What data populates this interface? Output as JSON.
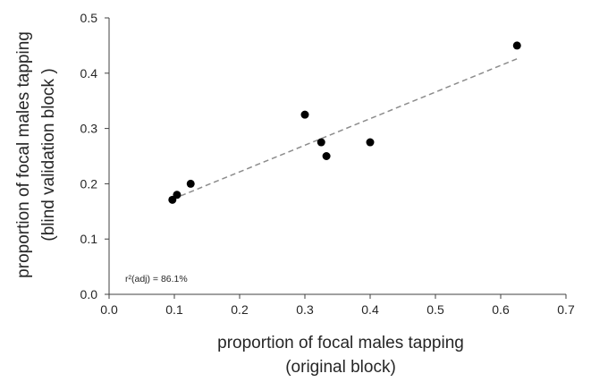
{
  "chart_data": {
    "type": "scatter",
    "xlabel": [
      "proportion of focal males tapping",
      "(original block)"
    ],
    "ylabel": [
      "proportion of focal males tapping",
      "(blind validation block )"
    ],
    "xlim": [
      0,
      0.7
    ],
    "ylim": [
      0,
      0.5
    ],
    "xticks": [
      "0.0",
      "0.1",
      "0.2",
      "0.3",
      "0.4",
      "0.5",
      "0.6",
      "0.7"
    ],
    "yticks": [
      "0.0",
      "0.1",
      "0.2",
      "0.3",
      "0.4",
      "0.5"
    ],
    "grid": false,
    "points": [
      {
        "x": 0.097,
        "y": 0.171
      },
      {
        "x": 0.104,
        "y": 0.18
      },
      {
        "x": 0.125,
        "y": 0.2
      },
      {
        "x": 0.3,
        "y": 0.325
      },
      {
        "x": 0.325,
        "y": 0.275
      },
      {
        "x": 0.333,
        "y": 0.25
      },
      {
        "x": 0.4,
        "y": 0.275
      },
      {
        "x": 0.625,
        "y": 0.45
      }
    ],
    "trendline": {
      "style": "dashed",
      "color": "#8c8c8c",
      "x": [
        0.097,
        0.625
      ],
      "y": [
        0.172,
        0.426
      ]
    },
    "annotation": "r²(adj) = 86.1%",
    "marker_color": "#000000",
    "axis_color": "#404040"
  }
}
